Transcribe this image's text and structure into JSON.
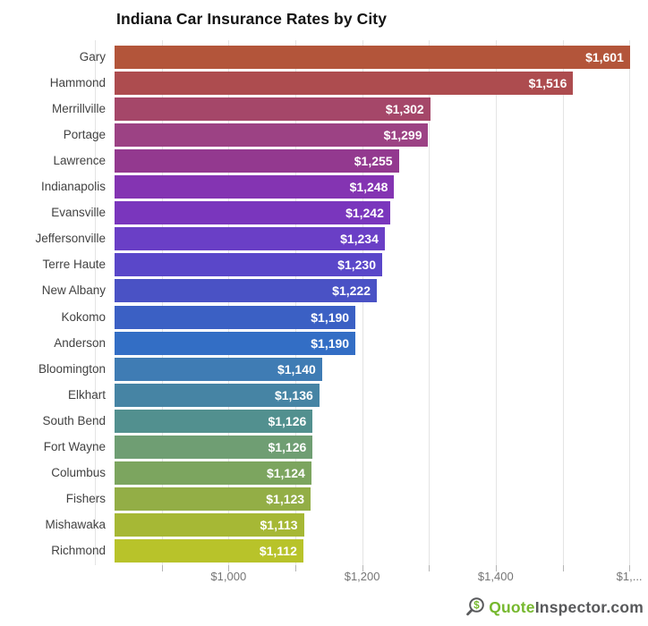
{
  "title": "Indiana Car Insurance Rates by City",
  "watermark": {
    "icon": "dollar-magnifier-icon",
    "green_text": "Quote",
    "gray_text": "Inspector.com",
    "green_color": "#76b82e",
    "gray_color": "#58595b"
  },
  "chart_data": {
    "type": "bar",
    "orientation": "horizontal",
    "title": "Indiana Car Insurance Rates by City",
    "xlabel": "",
    "ylabel": "",
    "grid": true,
    "categories": [
      "Gary",
      "Hammond",
      "Merrillville",
      "Portage",
      "Lawrence",
      "Indianapolis",
      "Evansville",
      "Jeffersonville",
      "Terre Haute",
      "New Albany",
      "Kokomo",
      "Anderson",
      "Bloomington",
      "Elkhart",
      "South Bend",
      "Fort Wayne",
      "Columbus",
      "Fishers",
      "Mishawaka",
      "Richmond"
    ],
    "values": [
      1601,
      1516,
      1302,
      1299,
      1255,
      1248,
      1242,
      1234,
      1230,
      1222,
      1190,
      1190,
      1140,
      1136,
      1126,
      1126,
      1124,
      1123,
      1113,
      1112
    ],
    "value_labels": [
      "$1,601",
      "$1,516",
      "$1,302",
      "$1,299",
      "$1,255",
      "$1,248",
      "$1,242",
      "$1,234",
      "$1,230",
      "$1,222",
      "$1,190",
      "$1,190",
      "$1,140",
      "$1,136",
      "$1,126",
      "$1,126",
      "$1,124",
      "$1,123",
      "$1,113",
      "$1,112"
    ],
    "bar_colors": [
      "#b3553a",
      "#ad4c4f",
      "#a54769",
      "#9c4284",
      "#93398f",
      "#8434b2",
      "#7a36bd",
      "#6a3fc6",
      "#5a47c9",
      "#4a52c5",
      "#3b60c4",
      "#336ec5",
      "#3f7cb4",
      "#4684a4",
      "#52908f",
      "#6f9e73",
      "#7ca55f",
      "#93ae46",
      "#a6b835",
      "#b8c32a"
    ],
    "value_label_color": "#ffffff",
    "category_label_color": "#424242",
    "x_axis": {
      "axis_min": 800,
      "axis_max_visible": 1628,
      "bar_base_value": 830,
      "tick_values": [
        1000,
        1200,
        1400,
        1600
      ],
      "tick_labels": [
        "$1,000",
        "$1,200",
        "$1,400",
        "$1,..."
      ],
      "gridline_values": [
        900,
        1000,
        1100,
        1200,
        1300,
        1400,
        1500,
        1600
      ],
      "gridline_color": "#e4e4e4",
      "tick_label_color": "#757575"
    }
  }
}
